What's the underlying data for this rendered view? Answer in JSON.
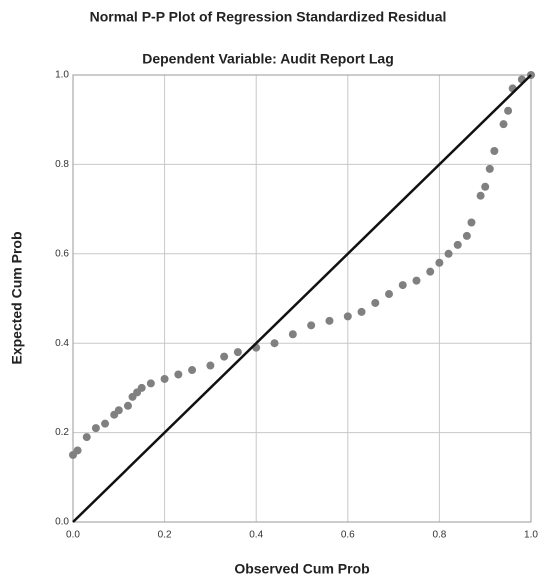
{
  "chart_data": {
    "type": "scatter",
    "title": "Normal P-P Plot of Regression Standardized Residual",
    "subtitle": "Dependent Variable: Audit Report Lag",
    "x_label": "Observed Cum Prob",
    "y_label": "Expected Cum Prob",
    "x": [
      0.0,
      0.01,
      0.03,
      0.05,
      0.07,
      0.09,
      0.1,
      0.12,
      0.13,
      0.14,
      0.15,
      0.17,
      0.2,
      0.23,
      0.26,
      0.3,
      0.33,
      0.36,
      0.4,
      0.44,
      0.48,
      0.52,
      0.56,
      0.6,
      0.63,
      0.66,
      0.69,
      0.72,
      0.75,
      0.78,
      0.8,
      0.82,
      0.84,
      0.86,
      0.87,
      0.89,
      0.9,
      0.91,
      0.92,
      0.94,
      0.95,
      0.96,
      0.98,
      1.0
    ],
    "values": [
      0.15,
      0.16,
      0.19,
      0.21,
      0.22,
      0.24,
      0.25,
      0.26,
      0.28,
      0.29,
      0.3,
      0.31,
      0.32,
      0.33,
      0.34,
      0.35,
      0.37,
      0.38,
      0.39,
      0.4,
      0.42,
      0.44,
      0.45,
      0.46,
      0.47,
      0.49,
      0.51,
      0.53,
      0.54,
      0.56,
      0.58,
      0.6,
      0.62,
      0.64,
      0.67,
      0.73,
      0.75,
      0.79,
      0.83,
      0.89,
      0.92,
      0.97,
      0.99,
      1.0
    ],
    "color": "#808080",
    "xlim": [
      0,
      1
    ],
    "ylim": [
      0,
      1
    ],
    "xticks": [
      {
        "value": 0,
        "label": "0.0"
      },
      0.2,
      0.4,
      0.6,
      0.8,
      {
        "value": 1,
        "label": "1.0"
      }
    ],
    "yticks": [
      {
        "value": 0,
        "label": "0.0"
      },
      0.2,
      0.4,
      0.6,
      0.8,
      {
        "value": 1,
        "label": "1.0"
      }
    ],
    "grid": true
  }
}
